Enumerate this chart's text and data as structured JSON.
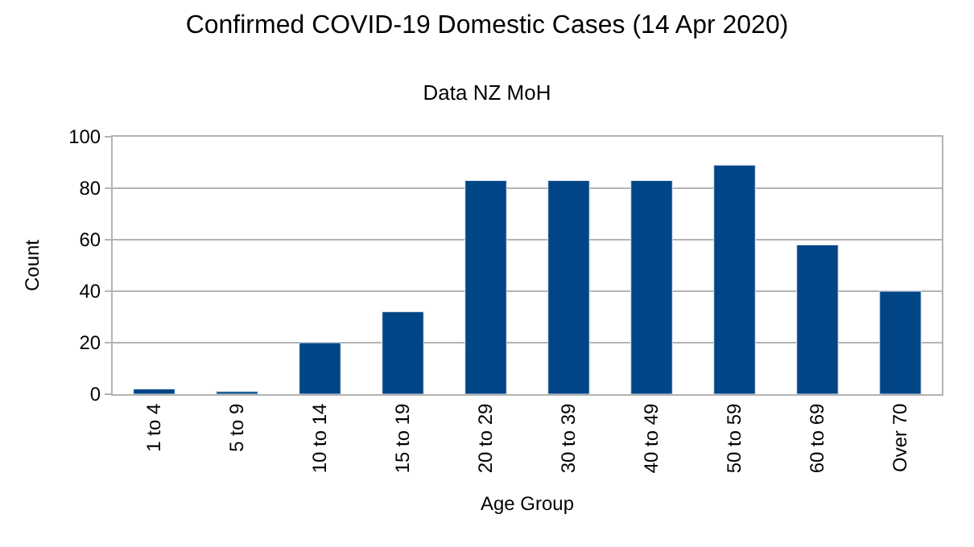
{
  "chart_data": {
    "type": "bar",
    "title": "Confirmed COVID-19 Domestic Cases (14 Apr 2020)",
    "subtitle": "Data NZ MoH",
    "xlabel": "Age Group",
    "ylabel": "Count",
    "categories": [
      "1 to 4",
      "5 to 9",
      "10 to 14",
      "15 to 19",
      "20 to 29",
      "30 to 39",
      "40 to 49",
      "50 to 59",
      "60 to 69",
      "Over 70"
    ],
    "values": [
      2,
      1,
      20,
      32,
      83,
      83,
      83,
      89,
      58,
      40
    ],
    "color": "#004586",
    "ylim": [
      0,
      100
    ],
    "yticks": [
      0,
      20,
      40,
      60,
      80,
      100
    ],
    "grid": "y"
  }
}
